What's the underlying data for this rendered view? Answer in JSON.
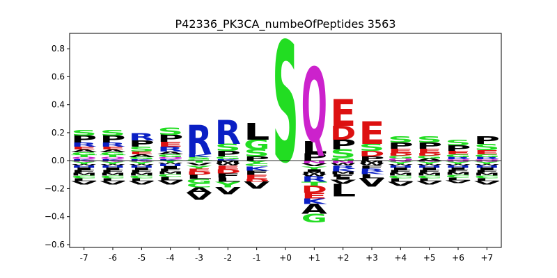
{
  "chart_data": {
    "type": "sequence-logo",
    "title": "P42336_PK3CA_numbeOfPeptides 3563",
    "xlabel": "",
    "ylabel": "",
    "ylim": [
      -0.62,
      0.91
    ],
    "yticks": [
      -0.6,
      -0.4,
      -0.2,
      0.0,
      0.2,
      0.4,
      0.6,
      0.8
    ],
    "ytick_labels": [
      "−0.6",
      "−0.4",
      "−0.2",
      "0.0",
      "0.2",
      "0.4",
      "0.6",
      "0.8"
    ],
    "positions": [
      "-7",
      "-6",
      "-5",
      "-4",
      "-3",
      "-2",
      "-1",
      "+0",
      "+1",
      "+2",
      "+3",
      "+4",
      "+5",
      "+6",
      "+7"
    ],
    "grid": false,
    "colors": {
      "S": "#22dd22",
      "G": "#22dd22",
      "T": "#22dd22",
      "P": "#000000",
      "L": "#000000",
      "V": "#000000",
      "A": "#000000",
      "I": "#000000",
      "M": "#000000",
      "F": "#000000",
      "W": "#000000",
      "R": "#0a1fc4",
      "K": "#0a1fc4",
      "H": "#0a1fc4",
      "E": "#dd1111",
      "D": "#dd1111",
      "Q": "#cc22cc",
      "N": "#cc22cc",
      "Y": "#22dd22",
      "C": "#22dd22"
    },
    "columns": [
      {
        "pos": "-7",
        "pos_stack": [
          {
            "aa": "S",
            "h": 0.04
          },
          {
            "aa": "P",
            "h": 0.05
          },
          {
            "aa": "R",
            "h": 0.03
          },
          {
            "aa": "E",
            "h": 0.02
          },
          {
            "aa": "A",
            "h": 0.02
          },
          {
            "aa": "G",
            "h": 0.02
          },
          {
            "aa": "T",
            "h": 0.015
          },
          {
            "aa": "Q",
            "h": 0.015
          },
          {
            "aa": "K",
            "h": 0.01
          }
        ],
        "neg_stack": [
          {
            "aa": "N",
            "h": 0.01
          },
          {
            "aa": "Y",
            "h": 0.015
          },
          {
            "aa": "W",
            "h": 0.01
          },
          {
            "aa": "H",
            "h": 0.015
          },
          {
            "aa": "I",
            "h": 0.015
          },
          {
            "aa": "F",
            "h": 0.02
          },
          {
            "aa": "M",
            "h": 0.02
          },
          {
            "aa": "C",
            "h": 0.02
          },
          {
            "aa": "L",
            "h": 0.02
          },
          {
            "aa": "V",
            "h": 0.025
          }
        ]
      },
      {
        "pos": "-6",
        "pos_stack": [
          {
            "aa": "S",
            "h": 0.04
          },
          {
            "aa": "P",
            "h": 0.05
          },
          {
            "aa": "R",
            "h": 0.03
          },
          {
            "aa": "E",
            "h": 0.02
          },
          {
            "aa": "A",
            "h": 0.02
          },
          {
            "aa": "G",
            "h": 0.02
          },
          {
            "aa": "T",
            "h": 0.015
          },
          {
            "aa": "Q",
            "h": 0.015
          },
          {
            "aa": "K",
            "h": 0.01
          }
        ],
        "neg_stack": [
          {
            "aa": "N",
            "h": 0.01
          },
          {
            "aa": "Y",
            "h": 0.015
          },
          {
            "aa": "W",
            "h": 0.01
          },
          {
            "aa": "H",
            "h": 0.015
          },
          {
            "aa": "I",
            "h": 0.015
          },
          {
            "aa": "F",
            "h": 0.02
          },
          {
            "aa": "M",
            "h": 0.02
          },
          {
            "aa": "C",
            "h": 0.02
          },
          {
            "aa": "L",
            "h": 0.02
          },
          {
            "aa": "V",
            "h": 0.025
          }
        ]
      },
      {
        "pos": "-5",
        "pos_stack": [
          {
            "aa": "R",
            "h": 0.05
          },
          {
            "aa": "P",
            "h": 0.045
          },
          {
            "aa": "S",
            "h": 0.035
          },
          {
            "aa": "E",
            "h": 0.02
          },
          {
            "aa": "A",
            "h": 0.02
          },
          {
            "aa": "G",
            "h": 0.015
          },
          {
            "aa": "K",
            "h": 0.01
          }
        ],
        "neg_stack": [
          {
            "aa": "N",
            "h": 0.01
          },
          {
            "aa": "Y",
            "h": 0.015
          },
          {
            "aa": "W",
            "h": 0.01
          },
          {
            "aa": "H",
            "h": 0.015
          },
          {
            "aa": "I",
            "h": 0.015
          },
          {
            "aa": "F",
            "h": 0.02
          },
          {
            "aa": "M",
            "h": 0.02
          },
          {
            "aa": "C",
            "h": 0.02
          },
          {
            "aa": "L",
            "h": 0.02
          },
          {
            "aa": "V",
            "h": 0.025
          }
        ]
      },
      {
        "pos": "-4",
        "pos_stack": [
          {
            "aa": "S",
            "h": 0.05
          },
          {
            "aa": "P",
            "h": 0.05
          },
          {
            "aa": "E",
            "h": 0.035
          },
          {
            "aa": "R",
            "h": 0.035
          },
          {
            "aa": "A",
            "h": 0.02
          },
          {
            "aa": "G",
            "h": 0.02
          },
          {
            "aa": "Q",
            "h": 0.015
          },
          {
            "aa": "K",
            "h": 0.01
          }
        ],
        "neg_stack": [
          {
            "aa": "Y",
            "h": 0.015
          },
          {
            "aa": "W",
            "h": 0.01
          },
          {
            "aa": "H",
            "h": 0.015
          },
          {
            "aa": "I",
            "h": 0.015
          },
          {
            "aa": "F",
            "h": 0.02
          },
          {
            "aa": "M",
            "h": 0.02
          },
          {
            "aa": "C",
            "h": 0.02
          },
          {
            "aa": "L",
            "h": 0.025
          },
          {
            "aa": "V",
            "h": 0.03
          }
        ]
      },
      {
        "pos": "-3",
        "pos_stack": [
          {
            "aa": "R",
            "h": 0.21
          },
          {
            "aa": "K",
            "h": 0.02
          },
          {
            "aa": "S",
            "h": 0.015
          },
          {
            "aa": "G",
            "h": 0.01
          }
        ],
        "neg_stack": [
          {
            "aa": "T",
            "h": 0.015
          },
          {
            "aa": "V",
            "h": 0.02
          },
          {
            "aa": "Y",
            "h": 0.02
          },
          {
            "aa": "E",
            "h": 0.02
          },
          {
            "aa": "D",
            "h": 0.025
          },
          {
            "aa": "L",
            "h": 0.03
          },
          {
            "aa": "G",
            "h": 0.03
          },
          {
            "aa": "C",
            "h": 0.03
          },
          {
            "aa": "A",
            "h": 0.04
          },
          {
            "aa": "V",
            "h": 0.05
          }
        ]
      },
      {
        "pos": "-2",
        "pos_stack": [
          {
            "aa": "R",
            "h": 0.17
          },
          {
            "aa": "S",
            "h": 0.05
          },
          {
            "aa": "P",
            "h": 0.04
          },
          {
            "aa": "G",
            "h": 0.02
          },
          {
            "aa": "K",
            "h": 0.01
          }
        ],
        "neg_stack": [
          {
            "aa": "M",
            "h": 0.02
          },
          {
            "aa": "W",
            "h": 0.015
          },
          {
            "aa": "E",
            "h": 0.025
          },
          {
            "aa": "D",
            "h": 0.03
          },
          {
            "aa": "F",
            "h": 0.03
          },
          {
            "aa": "L",
            "h": 0.03
          },
          {
            "aa": "Y",
            "h": 0.04
          },
          {
            "aa": "V",
            "h": 0.05
          }
        ]
      },
      {
        "pos": "-1",
        "pos_stack": [
          {
            "aa": "L",
            "h": 0.12
          },
          {
            "aa": "G",
            "h": 0.07
          },
          {
            "aa": "S",
            "h": 0.05
          },
          {
            "aa": "P",
            "h": 0.03
          }
        ],
        "neg_stack": [
          {
            "aa": "Y",
            "h": 0.02
          },
          {
            "aa": "C",
            "h": 0.02
          },
          {
            "aa": "K",
            "h": 0.03
          },
          {
            "aa": "F",
            "h": 0.03
          },
          {
            "aa": "E",
            "h": 0.03
          },
          {
            "aa": "D",
            "h": 0.02
          },
          {
            "aa": "V",
            "h": 0.05
          }
        ]
      },
      {
        "pos": "+0",
        "pos_stack": [
          {
            "aa": "S",
            "h": 0.86
          }
        ],
        "neg_stack": []
      },
      {
        "pos": "+1",
        "pos_stack": [
          {
            "aa": "Q",
            "h": 0.53
          },
          {
            "aa": "L",
            "h": 0.09
          },
          {
            "aa": "P",
            "h": 0.05
          }
        ],
        "neg_stack": [
          {
            "aa": "N",
            "h": 0.02
          },
          {
            "aa": "V",
            "h": 0.02
          },
          {
            "aa": "Y",
            "h": 0.02
          },
          {
            "aa": "I",
            "h": 0.02
          },
          {
            "aa": "M",
            "h": 0.015
          },
          {
            "aa": "W",
            "h": 0.015
          },
          {
            "aa": "R",
            "h": 0.04
          },
          {
            "aa": "T",
            "h": 0.03
          },
          {
            "aa": "D",
            "h": 0.05
          },
          {
            "aa": "E",
            "h": 0.04
          },
          {
            "aa": "K",
            "h": 0.04
          },
          {
            "aa": "A",
            "h": 0.07
          },
          {
            "aa": "G",
            "h": 0.06
          }
        ]
      },
      {
        "pos": "+2",
        "pos_stack": [
          {
            "aa": "E",
            "h": 0.19
          },
          {
            "aa": "D",
            "h": 0.1
          },
          {
            "aa": "P",
            "h": 0.07
          },
          {
            "aa": "S",
            "h": 0.06
          },
          {
            "aa": "G",
            "h": 0.02
          }
        ],
        "neg_stack": [
          {
            "aa": "N",
            "h": 0.02
          },
          {
            "aa": "W",
            "h": 0.015
          },
          {
            "aa": "R",
            "h": 0.02
          },
          {
            "aa": "K",
            "h": 0.02
          },
          {
            "aa": "M",
            "h": 0.02
          },
          {
            "aa": "F",
            "h": 0.02
          },
          {
            "aa": "I",
            "h": 0.02
          },
          {
            "aa": "V",
            "h": 0.03
          },
          {
            "aa": "L",
            "h": 0.09
          }
        ]
      },
      {
        "pos": "+3",
        "pos_stack": [
          {
            "aa": "E",
            "h": 0.16
          },
          {
            "aa": "S",
            "h": 0.05
          },
          {
            "aa": "D",
            "h": 0.04
          },
          {
            "aa": "P",
            "h": 0.03
          }
        ],
        "neg_stack": [
          {
            "aa": "M",
            "h": 0.02
          },
          {
            "aa": "W",
            "h": 0.015
          },
          {
            "aa": "F",
            "h": 0.02
          },
          {
            "aa": "R",
            "h": 0.02
          },
          {
            "aa": "K",
            "h": 0.02
          },
          {
            "aa": "L",
            "h": 0.03
          },
          {
            "aa": "V",
            "h": 0.06
          }
        ]
      },
      {
        "pos": "+4",
        "pos_stack": [
          {
            "aa": "S",
            "h": 0.045
          },
          {
            "aa": "P",
            "h": 0.045
          },
          {
            "aa": "E",
            "h": 0.03
          },
          {
            "aa": "D",
            "h": 0.02
          },
          {
            "aa": "G",
            "h": 0.02
          },
          {
            "aa": "Q",
            "h": 0.015
          }
        ],
        "neg_stack": [
          {
            "aa": "N",
            "h": 0.01
          },
          {
            "aa": "Y",
            "h": 0.015
          },
          {
            "aa": "W",
            "h": 0.01
          },
          {
            "aa": "H",
            "h": 0.015
          },
          {
            "aa": "I",
            "h": 0.015
          },
          {
            "aa": "F",
            "h": 0.02
          },
          {
            "aa": "M",
            "h": 0.02
          },
          {
            "aa": "C",
            "h": 0.02
          },
          {
            "aa": "L",
            "h": 0.025
          },
          {
            "aa": "V",
            "h": 0.03
          }
        ]
      },
      {
        "pos": "+5",
        "pos_stack": [
          {
            "aa": "S",
            "h": 0.045
          },
          {
            "aa": "P",
            "h": 0.045
          },
          {
            "aa": "E",
            "h": 0.03
          },
          {
            "aa": "D",
            "h": 0.02
          },
          {
            "aa": "G",
            "h": 0.02
          },
          {
            "aa": "A",
            "h": 0.015
          }
        ],
        "neg_stack": [
          {
            "aa": "N",
            "h": 0.01
          },
          {
            "aa": "Y",
            "h": 0.015
          },
          {
            "aa": "W",
            "h": 0.01
          },
          {
            "aa": "H",
            "h": 0.015
          },
          {
            "aa": "I",
            "h": 0.015
          },
          {
            "aa": "F",
            "h": 0.02
          },
          {
            "aa": "M",
            "h": 0.02
          },
          {
            "aa": "C",
            "h": 0.02
          },
          {
            "aa": "L",
            "h": 0.02
          },
          {
            "aa": "V",
            "h": 0.025
          }
        ]
      },
      {
        "pos": "+6",
        "pos_stack": [
          {
            "aa": "S",
            "h": 0.04
          },
          {
            "aa": "P",
            "h": 0.04
          },
          {
            "aa": "E",
            "h": 0.025
          },
          {
            "aa": "G",
            "h": 0.02
          },
          {
            "aa": "R",
            "h": 0.015
          },
          {
            "aa": "Q",
            "h": 0.01
          }
        ],
        "neg_stack": [
          {
            "aa": "N",
            "h": 0.01
          },
          {
            "aa": "Y",
            "h": 0.015
          },
          {
            "aa": "W",
            "h": 0.01
          },
          {
            "aa": "H",
            "h": 0.015
          },
          {
            "aa": "I",
            "h": 0.015
          },
          {
            "aa": "F",
            "h": 0.015
          },
          {
            "aa": "M",
            "h": 0.02
          },
          {
            "aa": "C",
            "h": 0.02
          },
          {
            "aa": "L",
            "h": 0.02
          },
          {
            "aa": "V",
            "h": 0.02
          }
        ]
      },
      {
        "pos": "+7",
        "pos_stack": [
          {
            "aa": "P",
            "h": 0.055
          },
          {
            "aa": "S",
            "h": 0.045
          },
          {
            "aa": "E",
            "h": 0.03
          },
          {
            "aa": "G",
            "h": 0.02
          },
          {
            "aa": "R",
            "h": 0.015
          },
          {
            "aa": "Q",
            "h": 0.01
          }
        ],
        "neg_stack": [
          {
            "aa": "N",
            "h": 0.01
          },
          {
            "aa": "Y",
            "h": 0.015
          },
          {
            "aa": "W",
            "h": 0.01
          },
          {
            "aa": "H",
            "h": 0.015
          },
          {
            "aa": "I",
            "h": 0.015
          },
          {
            "aa": "F",
            "h": 0.02
          },
          {
            "aa": "M",
            "h": 0.02
          },
          {
            "aa": "C",
            "h": 0.02
          },
          {
            "aa": "L",
            "h": 0.02
          },
          {
            "aa": "V",
            "h": 0.025
          }
        ]
      }
    ]
  }
}
